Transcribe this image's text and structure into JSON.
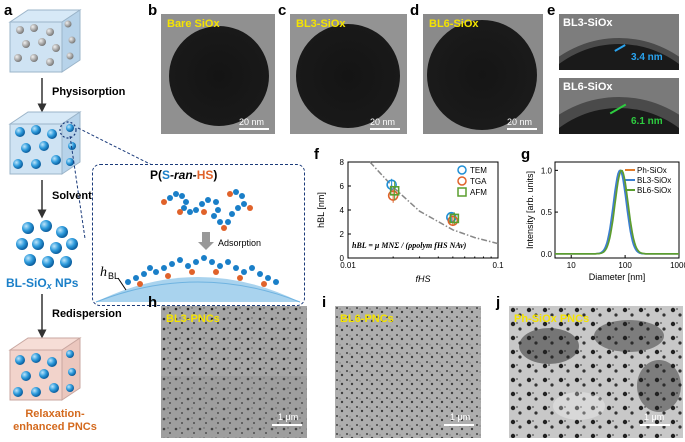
{
  "labels": {
    "a": "a",
    "b": "b",
    "c": "c",
    "d": "d",
    "e": "e",
    "f": "f",
    "g": "g",
    "h": "h",
    "i": "i",
    "j": "j"
  },
  "schematic": {
    "step1": "Physisorption",
    "step2": "Solvent leaching",
    "step3": "Redispersion",
    "np_label_pre": "BL-SiO",
    "np_label_sub": "x",
    "np_label_post": " NPs",
    "pnc_label": "Relaxation-enhanced PNCs",
    "polymer_pre": "P(",
    "polymer_s": "S",
    "polymer_mid": "-ran-",
    "polymer_hs": "HS",
    "polymer_post": ")",
    "adsorption": "Adsorption",
    "hbl_main": "h",
    "hbl_sub": "BL"
  },
  "tem": {
    "b_label": "Bare SiOx",
    "c_label": "BL3-SiOx",
    "d_label": "BL6-SiOx",
    "scale_20nm": "20 nm",
    "e_top_label": "BL3-SiOx",
    "e_top_value": "3.4 nm",
    "e_bottom_label": "BL6-SiOx",
    "e_bottom_value": "6.1 nm"
  },
  "sem": {
    "h_label": "BL3-PNCs",
    "i_label": "BL6-PNCs",
    "j_label": "Ph-SiOx PNCs",
    "scale_1um": "1 μm"
  },
  "chart_data": [
    {
      "type": "scatter",
      "panel": "f",
      "xlabel": "fHS",
      "ylabel": "hBL [nm]",
      "xscale": "log",
      "xlim": [
        0.01,
        0.1
      ],
      "ylim": [
        0,
        8
      ],
      "yticks": [
        0,
        2,
        4,
        6,
        8
      ],
      "xtick_labels": [
        "0.01",
        "0.1"
      ],
      "equation": "hBL = μ MNΣ / (ρpolym fHS NAv)",
      "legend_position": "top-right",
      "series": [
        {
          "name": "TEM",
          "color": "#1f8fd6",
          "x": [
            0.02,
            0.05
          ],
          "y": [
            6.1,
            3.4
          ],
          "err": [
            0.5,
            0.4
          ]
        },
        {
          "name": "TGA",
          "color": "#e0622a",
          "x": [
            0.02,
            0.05
          ],
          "y": [
            5.2,
            3.1
          ],
          "err": [
            0.6,
            0.4
          ]
        },
        {
          "name": "AFM",
          "color": "#5a9e2f",
          "x": [
            0.02,
            0.05
          ],
          "y": [
            5.6,
            3.3
          ],
          "err": [
            0.8,
            0.5
          ]
        }
      ],
      "fit": {
        "x": [
          0.014,
          0.02,
          0.03,
          0.05,
          0.07,
          0.1
        ],
        "y": [
          8.4,
          5.9,
          3.9,
          2.35,
          1.7,
          1.2
        ]
      }
    },
    {
      "type": "line",
      "panel": "g",
      "xlabel": "Diameter [nm]",
      "ylabel": "Intensity [arb. units]",
      "xscale": "log",
      "xlim": [
        5,
        1000
      ],
      "ylim": [
        -0.05,
        1.1
      ],
      "yticks": [
        0.0,
        0.5,
        1.0
      ],
      "xtick_labels": [
        "10",
        "100",
        "1000"
      ],
      "legend_position": "top-right",
      "series": [
        {
          "name": "Ph-SiOx",
          "color": "#e07b2a",
          "peak": 82
        },
        {
          "name": "BL3-SiOx",
          "color": "#3a7fd0",
          "peak": 80
        },
        {
          "name": "BL6-SiOx",
          "color": "#5a9e2f",
          "peak": 86
        }
      ]
    }
  ]
}
